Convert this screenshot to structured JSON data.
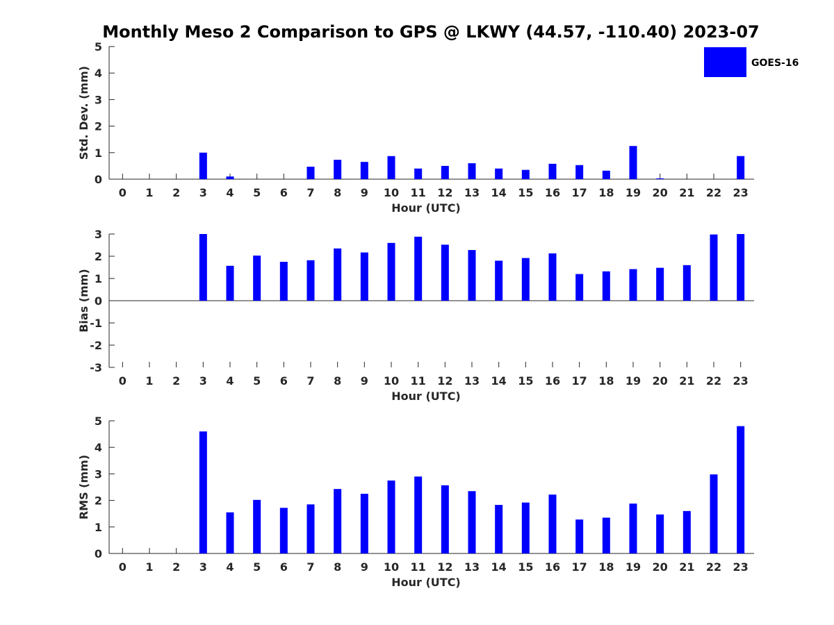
{
  "title": "Monthly Meso 2 Comparison to GPS @ LKWY (44.57, -110.40) 2023-07",
  "legend": {
    "label": "GOES-16",
    "color": "#0000ff"
  },
  "chart_data": [
    {
      "type": "bar",
      "ylabel": "Std. Dev. (mm)",
      "xlabel": "Hour (UTC)",
      "xlim": [
        -0.5,
        23.5
      ],
      "ylim": [
        0,
        5
      ],
      "yticks": [
        0,
        1,
        2,
        3,
        4,
        5
      ],
      "categories": [
        0,
        1,
        2,
        3,
        4,
        5,
        6,
        7,
        8,
        9,
        10,
        11,
        12,
        13,
        14,
        15,
        16,
        17,
        18,
        19,
        20,
        21,
        22,
        23
      ],
      "series": [
        {
          "name": "GOES-16",
          "color": "#0000ff",
          "values": [
            null,
            null,
            null,
            1.0,
            0.1,
            null,
            null,
            0.47,
            0.73,
            0.65,
            0.87,
            0.4,
            0.5,
            0.6,
            0.4,
            0.35,
            0.58,
            0.53,
            0.32,
            1.25,
            0.03,
            null,
            null,
            0.87
          ]
        }
      ]
    },
    {
      "type": "bar",
      "ylabel": "Bias (mm)",
      "xlabel": "Hour (UTC)",
      "xlim": [
        -0.5,
        23.5
      ],
      "ylim": [
        -3,
        3
      ],
      "yticks": [
        -3,
        -2,
        -1,
        0,
        1,
        2,
        3
      ],
      "baseline": 0,
      "categories": [
        0,
        1,
        2,
        3,
        4,
        5,
        6,
        7,
        8,
        9,
        10,
        11,
        12,
        13,
        14,
        15,
        16,
        17,
        18,
        19,
        20,
        21,
        22,
        23
      ],
      "series": [
        {
          "name": "GOES-16",
          "color": "#0000ff",
          "values": [
            null,
            null,
            null,
            3.0,
            1.57,
            2.03,
            1.75,
            1.82,
            2.35,
            2.17,
            2.6,
            2.88,
            2.52,
            2.28,
            1.8,
            1.92,
            2.13,
            1.2,
            1.32,
            1.42,
            1.48,
            1.6,
            2.98,
            3.0
          ]
        }
      ]
    },
    {
      "type": "bar",
      "ylabel": "RMS (mm)",
      "xlabel": "Hour (UTC)",
      "xlim": [
        -0.5,
        23.5
      ],
      "ylim": [
        0,
        5
      ],
      "yticks": [
        0,
        1,
        2,
        3,
        4,
        5
      ],
      "categories": [
        0,
        1,
        2,
        3,
        4,
        5,
        6,
        7,
        8,
        9,
        10,
        11,
        12,
        13,
        14,
        15,
        16,
        17,
        18,
        19,
        20,
        21,
        22,
        23
      ],
      "series": [
        {
          "name": "GOES-16",
          "color": "#0000ff",
          "values": [
            null,
            null,
            null,
            4.6,
            1.55,
            2.02,
            1.72,
            1.85,
            2.43,
            2.25,
            2.75,
            2.9,
            2.57,
            2.35,
            1.83,
            1.92,
            2.22,
            1.28,
            1.35,
            1.88,
            1.47,
            1.6,
            2.98,
            4.8
          ]
        }
      ]
    }
  ]
}
